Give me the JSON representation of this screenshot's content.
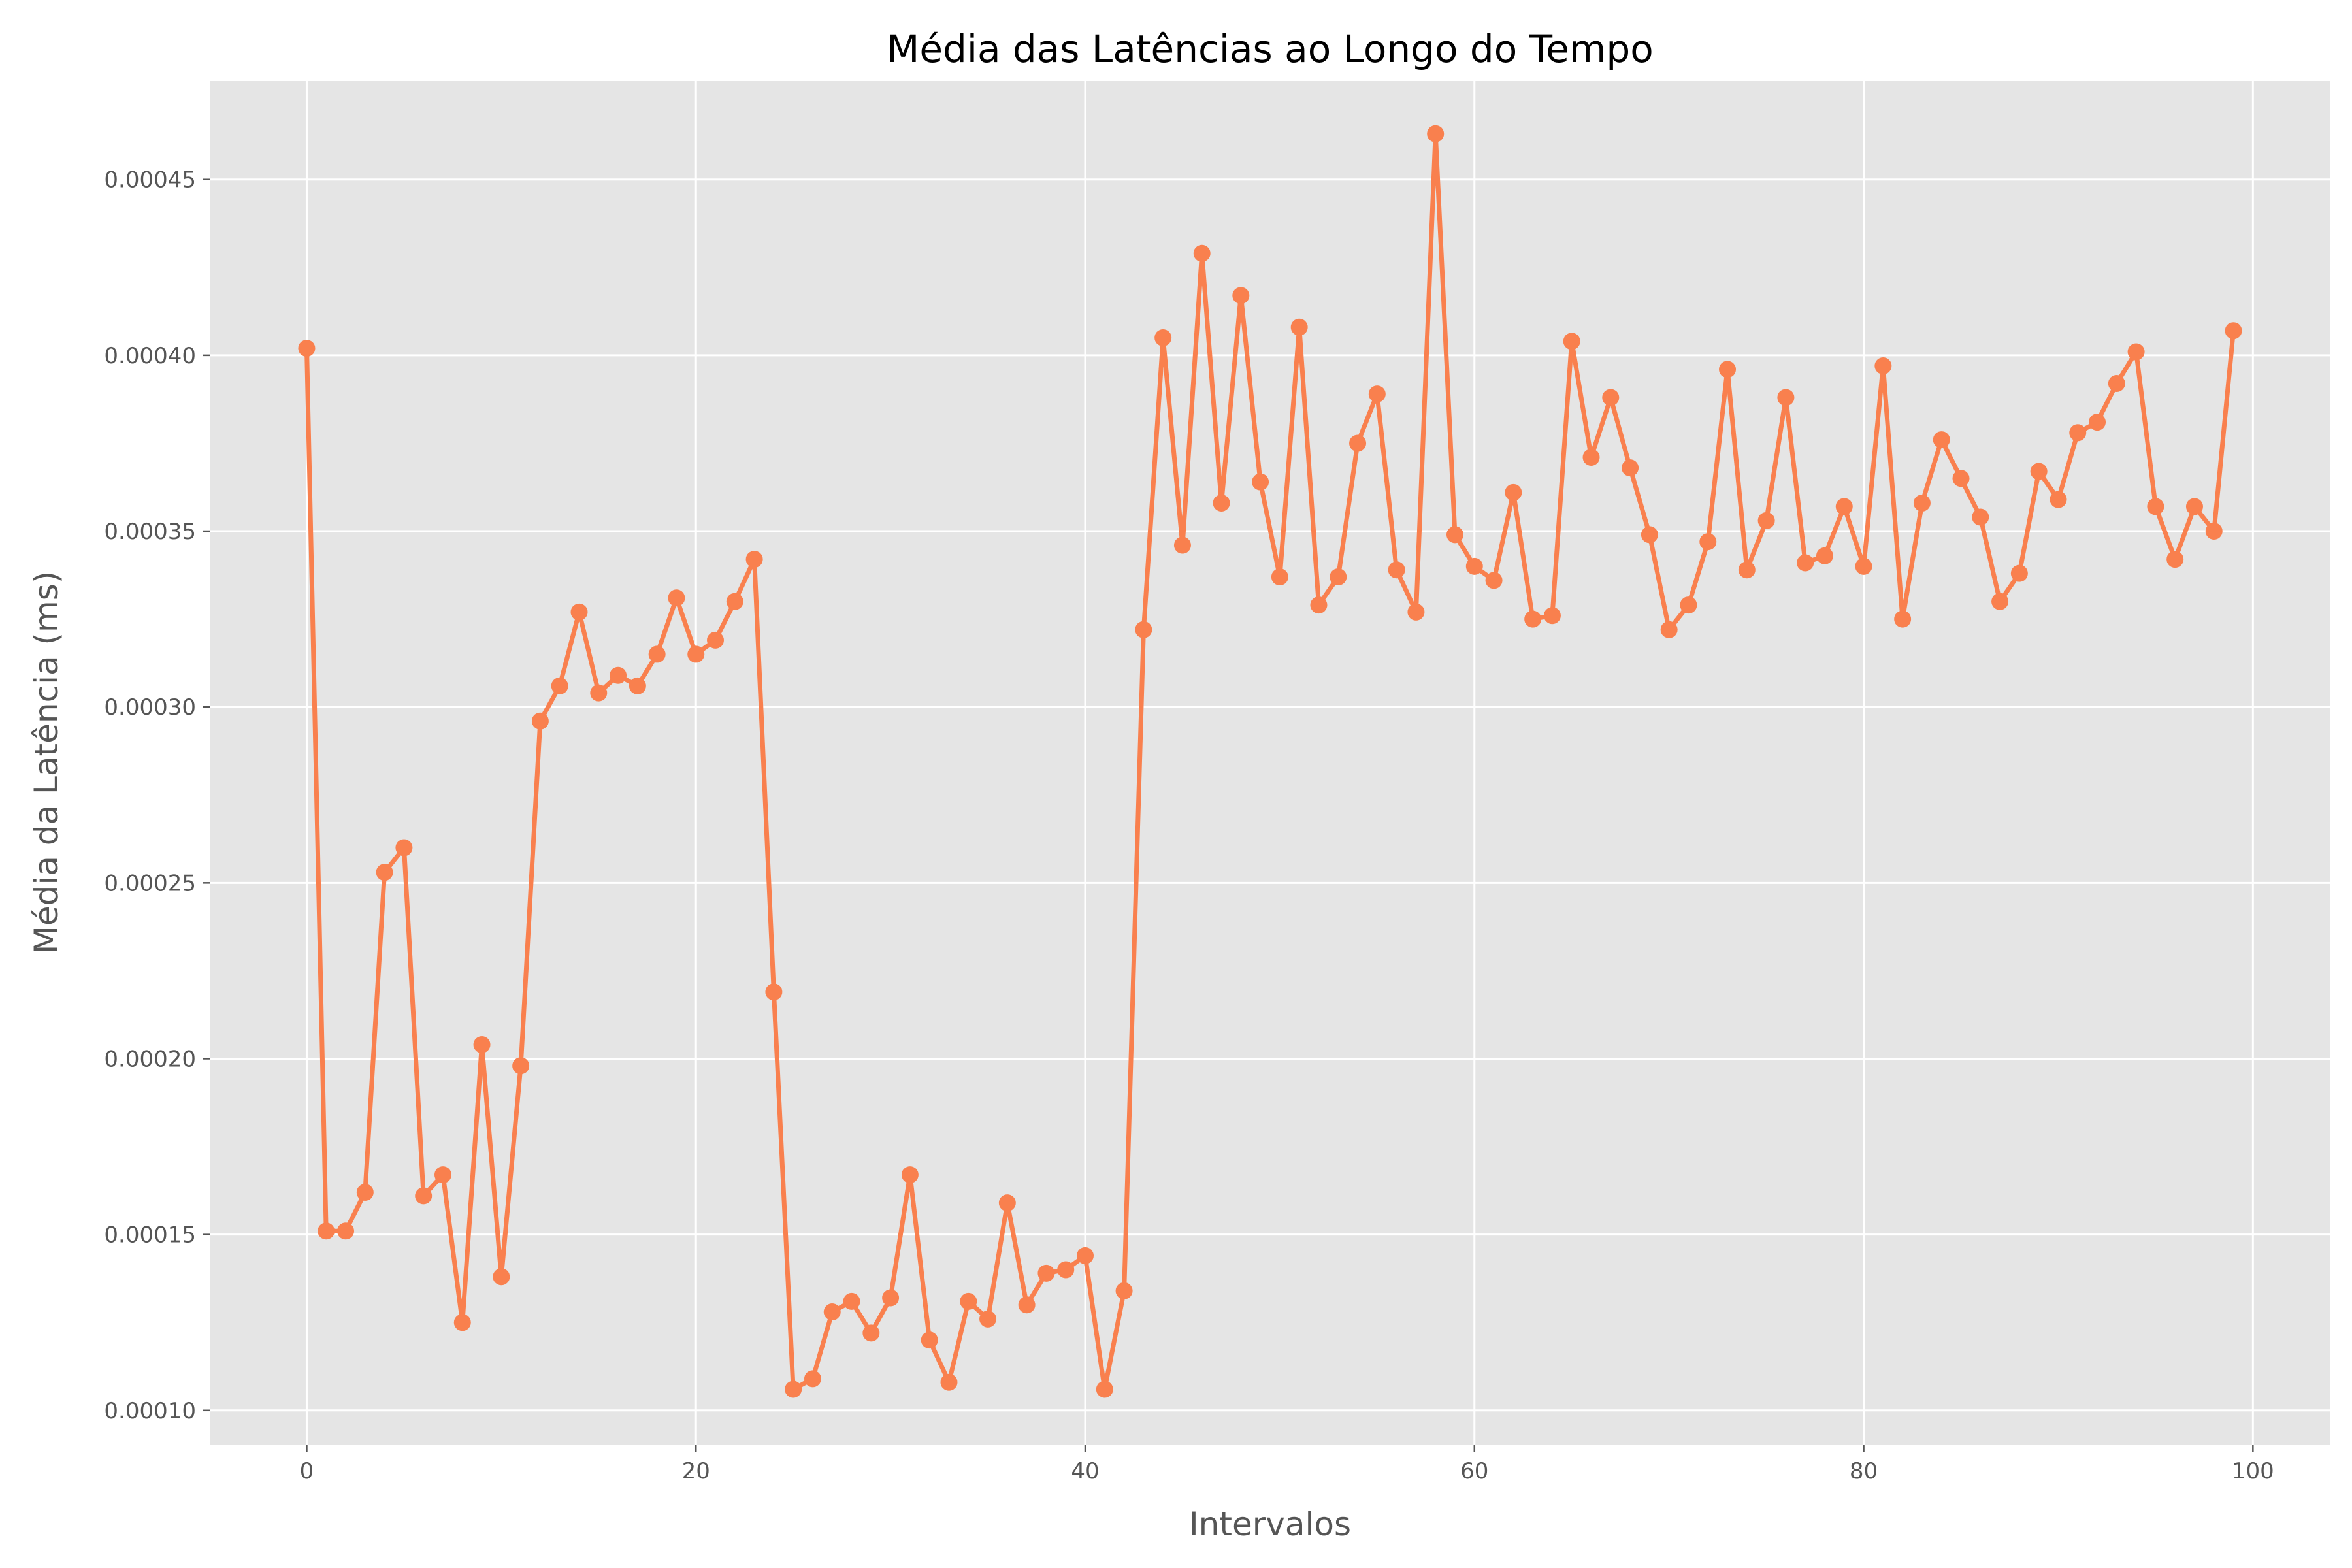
{
  "chart_data": {
    "type": "line",
    "title": "Média das Latências ao Longo do Tempo",
    "xlabel": "Intervalos",
    "ylabel": "Média da Latência (ms)",
    "xlim": [
      -4.95,
      103.95
    ],
    "ylim": [
      9.03e-05,
      0.000478
    ],
    "xticks": [
      0,
      20,
      40,
      60,
      80,
      100
    ],
    "xtick_labels": [
      "0",
      "20",
      "40",
      "60",
      "80",
      "100"
    ],
    "yticks": [
      0.0001,
      0.00015,
      0.0002,
      0.00025,
      0.0003,
      0.00035,
      0.0004,
      0.00045
    ],
    "ytick_labels": [
      "0.00010",
      "0.00015",
      "0.00020",
      "0.00025",
      "0.00030",
      "0.00035",
      "0.00040",
      "0.00045"
    ],
    "grid": true,
    "line_color": "#F9804E",
    "background_color": "#E5E5E5",
    "series": [
      {
        "x": [
          0,
          1,
          2,
          3,
          4,
          5,
          6,
          7,
          8,
          9,
          10,
          11,
          12,
          13,
          14,
          15,
          16,
          17,
          18,
          19,
          20,
          21,
          22,
          23,
          24,
          25,
          26,
          27,
          28,
          29,
          30,
          31,
          32,
          33,
          34,
          35,
          36,
          37,
          38,
          39,
          40,
          41,
          42,
          43,
          44,
          45,
          46,
          47,
          48,
          49,
          50,
          51,
          52,
          53,
          54,
          55,
          56,
          57,
          58,
          59,
          60,
          61,
          62,
          63,
          64,
          65,
          66,
          67,
          68,
          69,
          70,
          71,
          72,
          73,
          74,
          75,
          76,
          77,
          78,
          79,
          80,
          81,
          82,
          83,
          84,
          85,
          86,
          87,
          88,
          89,
          90,
          91,
          92,
          93,
          94,
          95,
          96,
          97,
          98,
          99
        ],
        "values": [
          0.000402,
          0.000151,
          0.000151,
          0.000162,
          0.000253,
          0.00026,
          0.000161,
          0.000167,
          0.000125,
          0.000204,
          0.000138,
          0.000198,
          0.000296,
          0.000306,
          0.000327,
          0.000304,
          0.000309,
          0.000306,
          0.000315,
          0.000331,
          0.000315,
          0.000319,
          0.00033,
          0.000342,
          0.000219,
          0.000106,
          0.000109,
          0.000128,
          0.000131,
          0.000122,
          0.000132,
          0.000167,
          0.00012,
          0.000108,
          0.000131,
          0.000126,
          0.000159,
          0.00013,
          0.000139,
          0.00014,
          0.000144,
          0.000106,
          0.000134,
          0.000322,
          0.000405,
          0.000346,
          0.000429,
          0.000358,
          0.000417,
          0.000364,
          0.000337,
          0.000408,
          0.000329,
          0.000337,
          0.000375,
          0.000389,
          0.000339,
          0.000327,
          0.000463,
          0.000349,
          0.00034,
          0.000336,
          0.000361,
          0.000325,
          0.000326,
          0.000404,
          0.000371,
          0.000388,
          0.000368,
          0.000349,
          0.000322,
          0.000329,
          0.000347,
          0.000396,
          0.000339,
          0.000353,
          0.000388,
          0.000341,
          0.000343,
          0.000357,
          0.00034,
          0.000397,
          0.000325,
          0.000358,
          0.000376,
          0.000365,
          0.000354,
          0.00033,
          0.000338,
          0.000367,
          0.000359,
          0.000378,
          0.000381,
          0.000392,
          0.000401,
          0.000357,
          0.000342,
          0.000357,
          0.00035,
          0.000407
        ]
      }
    ]
  }
}
